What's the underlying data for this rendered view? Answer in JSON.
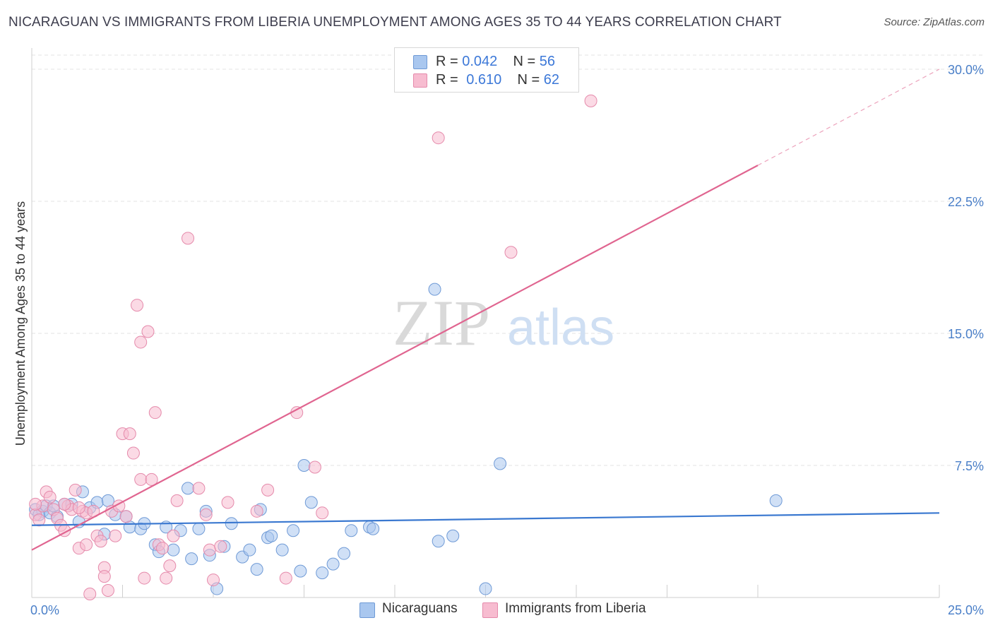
{
  "header": {
    "title": "NICARAGUAN VS IMMIGRANTS FROM LIBERIA UNEMPLOYMENT AMONG AGES 35 TO 44 YEARS CORRELATION CHART",
    "source": "Source: ZipAtlas.com"
  },
  "legend": {
    "r_label": "R =",
    "n_label": "N =",
    "series1": {
      "r": "0.042",
      "n": "56"
    },
    "series2": {
      "r": "0.610",
      "n": "62"
    }
  },
  "watermark": {
    "zip": "ZIP",
    "atlas": "atlas"
  },
  "colors": {
    "blue_fill": "#a9c7ef",
    "blue_stroke": "#6f9ad6",
    "blue_line": "#3a78d0",
    "pink_fill": "#f7bcd0",
    "pink_stroke": "#e58aab",
    "pink_line": "#e06590",
    "grid": "#e3e3e3",
    "axis_text": "#4a7fc8"
  },
  "chart_data": {
    "type": "scatter",
    "title": "NICARAGUAN VS IMMIGRANTS FROM LIBERIA UNEMPLOYMENT AMONG AGES 35 TO 44 YEARS CORRELATION CHART",
    "xlabel": "",
    "ylabel": "Unemployment Among Ages 35 to 44 years",
    "xlim": [
      0,
      25
    ],
    "ylim": [
      0,
      30
    ],
    "x_tick_labels": [
      "0.0%",
      "25.0%"
    ],
    "y_ticks": [
      7.5,
      15.0,
      22.5,
      30.0
    ],
    "y_tick_labels": [
      "7.5%",
      "15.0%",
      "22.5%",
      "30.0%"
    ],
    "series": [
      {
        "name": "Nicaraguans",
        "r": 0.042,
        "n": 56,
        "trend": {
          "x0": 0,
          "y0": 4.1,
          "x1": 25,
          "y1": 4.8
        },
        "points": [
          [
            0.1,
            5.0
          ],
          [
            0.3,
            4.9
          ],
          [
            0.2,
            4.7
          ],
          [
            0.4,
            5.2
          ],
          [
            0.5,
            4.8
          ],
          [
            0.7,
            4.6
          ],
          [
            0.9,
            5.3
          ],
          [
            1.1,
            5.3
          ],
          [
            1.3,
            4.3
          ],
          [
            1.4,
            6.0
          ],
          [
            1.6,
            5.1
          ],
          [
            1.8,
            5.4
          ],
          [
            2.0,
            3.6
          ],
          [
            2.1,
            5.5
          ],
          [
            2.3,
            4.7
          ],
          [
            2.6,
            4.6
          ],
          [
            2.7,
            4.0
          ],
          [
            3.0,
            3.9
          ],
          [
            3.1,
            4.2
          ],
          [
            3.4,
            3.0
          ],
          [
            3.5,
            2.6
          ],
          [
            3.7,
            4.0
          ],
          [
            3.9,
            2.7
          ],
          [
            4.1,
            3.8
          ],
          [
            4.3,
            6.2
          ],
          [
            4.4,
            2.2
          ],
          [
            4.6,
            3.9
          ],
          [
            4.8,
            4.9
          ],
          [
            4.9,
            2.4
          ],
          [
            5.1,
            0.5
          ],
          [
            5.3,
            2.9
          ],
          [
            5.5,
            4.2
          ],
          [
            5.8,
            2.3
          ],
          [
            6.0,
            2.7
          ],
          [
            6.2,
            1.6
          ],
          [
            6.3,
            5.0
          ],
          [
            6.5,
            3.4
          ],
          [
            6.6,
            3.5
          ],
          [
            6.9,
            2.7
          ],
          [
            7.2,
            3.8
          ],
          [
            7.4,
            1.5
          ],
          [
            7.5,
            7.5
          ],
          [
            7.7,
            5.4
          ],
          [
            8.0,
            1.4
          ],
          [
            8.3,
            1.9
          ],
          [
            8.6,
            2.5
          ],
          [
            8.8,
            3.8
          ],
          [
            9.3,
            4.0
          ],
          [
            9.4,
            3.9
          ],
          [
            11.1,
            17.5
          ],
          [
            11.2,
            3.2
          ],
          [
            11.6,
            3.5
          ],
          [
            12.5,
            0.5
          ],
          [
            12.9,
            7.6
          ],
          [
            20.5,
            5.5
          ],
          [
            0.6,
            5.2
          ]
        ]
      },
      {
        "name": "Immigrants from Liberia",
        "r": 0.61,
        "n": 62,
        "trend": {
          "x0": 0,
          "y0": 2.7,
          "x1": 25,
          "y1": 30.0,
          "solid_to_x": 20
        },
        "points": [
          [
            0.1,
            4.7
          ],
          [
            0.2,
            4.4
          ],
          [
            0.3,
            5.2
          ],
          [
            0.4,
            6.0
          ],
          [
            0.5,
            5.7
          ],
          [
            0.6,
            5.0
          ],
          [
            0.7,
            4.5
          ],
          [
            0.8,
            4.1
          ],
          [
            0.9,
            3.8
          ],
          [
            1.0,
            5.2
          ],
          [
            1.1,
            5.0
          ],
          [
            1.2,
            6.1
          ],
          [
            1.3,
            2.8
          ],
          [
            1.4,
            4.9
          ],
          [
            1.5,
            3.0
          ],
          [
            1.5,
            4.8
          ],
          [
            1.6,
            0.2
          ],
          [
            1.7,
            4.9
          ],
          [
            1.8,
            3.5
          ],
          [
            1.9,
            3.2
          ],
          [
            2.0,
            1.7
          ],
          [
            2.0,
            1.2
          ],
          [
            2.1,
            0.4
          ],
          [
            2.2,
            4.9
          ],
          [
            2.3,
            3.5
          ],
          [
            2.4,
            5.2
          ],
          [
            2.5,
            9.3
          ],
          [
            2.6,
            4.6
          ],
          [
            2.7,
            9.3
          ],
          [
            2.8,
            8.2
          ],
          [
            2.9,
            16.6
          ],
          [
            3.0,
            6.7
          ],
          [
            3.0,
            14.5
          ],
          [
            3.1,
            1.1
          ],
          [
            3.2,
            15.1
          ],
          [
            3.3,
            6.7
          ],
          [
            3.4,
            10.5
          ],
          [
            3.5,
            3.0
          ],
          [
            3.6,
            2.8
          ],
          [
            3.7,
            1.1
          ],
          [
            3.8,
            1.8
          ],
          [
            3.9,
            3.5
          ],
          [
            4.0,
            5.5
          ],
          [
            4.3,
            20.4
          ],
          [
            4.6,
            6.2
          ],
          [
            4.8,
            4.7
          ],
          [
            4.9,
            2.7
          ],
          [
            5.0,
            1.0
          ],
          [
            5.2,
            2.9
          ],
          [
            5.4,
            5.4
          ],
          [
            6.2,
            4.9
          ],
          [
            6.5,
            6.1
          ],
          [
            7.0,
            1.1
          ],
          [
            7.3,
            10.5
          ],
          [
            7.8,
            7.4
          ],
          [
            8.0,
            4.8
          ],
          [
            11.2,
            26.1
          ],
          [
            13.2,
            19.6
          ],
          [
            15.4,
            28.2
          ],
          [
            0.9,
            5.3
          ],
          [
            1.3,
            5.1
          ],
          [
            0.1,
            5.3
          ]
        ]
      }
    ],
    "legend_labels": [
      "Nicaraguans",
      "Immigrants from Liberia"
    ]
  }
}
